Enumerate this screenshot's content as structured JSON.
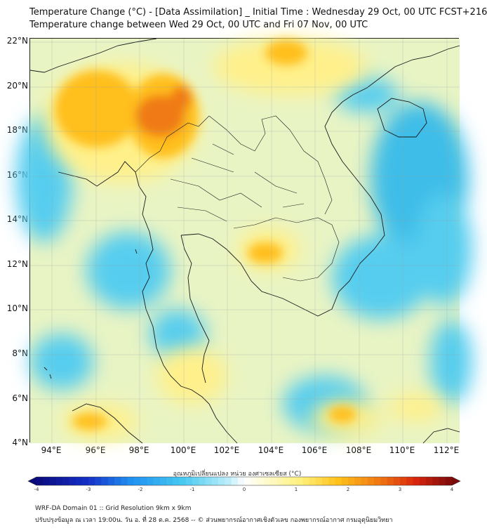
{
  "header": {
    "title_line1": "Temperature Change (°C) - [Data Assimilation] _ Initial Time : Wednesday 29 Oct, 00 UTC FCST+216",
    "title_line2": "Temperature change between Wed 29 Oct, 00 UTC and Fri 07 Nov, 00 UTC"
  },
  "map": {
    "lat_labels": [
      "22°N",
      "20°N",
      "18°N",
      "16°N",
      "14°N",
      "12°N",
      "10°N",
      "8°N",
      "6°N",
      "4°N"
    ],
    "lon_labels": [
      "94°E",
      "96°E",
      "98°E",
      "100°E",
      "102°E",
      "104°E",
      "106°E",
      "108°E",
      "110°E",
      "112°E"
    ],
    "lat_values": [
      22,
      20,
      18,
      16,
      14,
      12,
      10,
      8,
      6,
      4
    ],
    "lon_values": [
      94,
      96,
      98,
      100,
      102,
      104,
      106,
      108,
      110,
      112
    ],
    "extent": {
      "lon_min": 93.0,
      "lon_max": 112.6,
      "lat_min": 4.0,
      "lat_max": 22.2
    },
    "variable": "temperature change (°C)",
    "colors": {
      "ocean_base": "#8fdcf3",
      "land_base": "#e9f4c4",
      "warm_strong": "#f07a12",
      "warm": "#ffbf1f",
      "warm_light": "#fff08a",
      "cool": "#56cdef",
      "cool_strong": "#3dbde8",
      "borders": "#1a1a1a",
      "gridlines": "#9aa0a6"
    }
  },
  "colorbar": {
    "title": "อุณหภูมิเปลี่ยนแปลง หน่วย องศาเซลเซียส (°C)",
    "min": -4,
    "max": 4,
    "tick_labels": [
      "-4",
      "-3",
      "-2",
      "-1",
      "0",
      "1",
      "2",
      "3",
      "4"
    ],
    "tick_values": [
      -4,
      -3,
      -2,
      -1,
      0,
      1,
      2,
      3,
      4
    ],
    "stops": [
      {
        "value": -4,
        "color": "#0a0a7a"
      },
      {
        "value": -3,
        "color": "#1530c8"
      },
      {
        "value": -2.2,
        "color": "#1f8ff0"
      },
      {
        "value": -1.2,
        "color": "#46c8f0"
      },
      {
        "value": -0.3,
        "color": "#bdeefa"
      },
      {
        "value": 0,
        "color": "#ffffff"
      },
      {
        "value": 0.4,
        "color": "#fffbd0"
      },
      {
        "value": 1.1,
        "color": "#fff07a"
      },
      {
        "value": 1.8,
        "color": "#ffc21a"
      },
      {
        "value": 2.6,
        "color": "#f07812"
      },
      {
        "value": 3.3,
        "color": "#d8260c"
      },
      {
        "value": 4,
        "color": "#7a0a0a"
      }
    ]
  },
  "footer": {
    "line1": "WRF-DA Domain 01 :: Grid Resolution 9km x 9km",
    "line2": "ปรับปรุงข้อมูล ณ เวลา 19:00น. วัน อ. ที่ 28 ต.ค. 2568 -- © ส่วนพยากรณ์อากาศเชิงตัวเลข กองพยากรณ์อากาศ กรมอุตุนิยมวิทยา"
  }
}
